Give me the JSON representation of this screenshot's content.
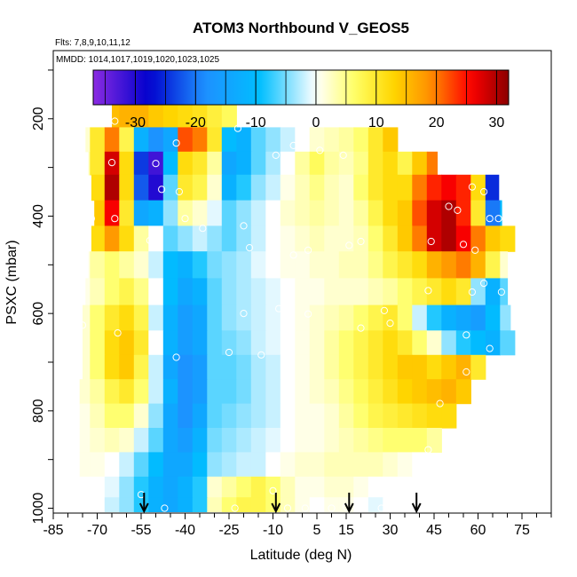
{
  "chart_data": {
    "type": "heatmap",
    "title": "ATOM3 Northbound V_GEOS5",
    "flights_label": "Flts: 7,8,9,10,11,12",
    "dates_label": "MMDD: 1014,1017,1019,1020,1023,1025",
    "xlabel": "Latitude (deg N)",
    "ylabel": "PSXC (mbar)",
    "xlim": [
      -85,
      85
    ],
    "ylim": [
      1010,
      60
    ],
    "x_ticks": [
      -85,
      -70,
      -55,
      -40,
      -25,
      -10,
      5,
      15,
      30,
      45,
      60,
      75
    ],
    "y_ticks": [
      200,
      400,
      600,
      800,
      1000
    ],
    "colorbar": {
      "ticks": [
        -30,
        -20,
        -10,
        0,
        10,
        20,
        30
      ],
      "range": [
        -37,
        32
      ],
      "colors": [
        "#8b2be2",
        "#0000cd",
        "#1e90ff",
        "#00bfff",
        "#ffffff",
        "#ffff66",
        "#ffd700",
        "#ff8c00",
        "#ff0000",
        "#8b0000"
      ]
    },
    "arrows_lat": [
      -54,
      -9,
      16,
      39
    ],
    "lat_grid": [
      -75,
      -70,
      -65,
      -60,
      -55,
      -50,
      -45,
      -40,
      -35,
      -30,
      -25,
      -20,
      -15,
      -10,
      -5,
      0,
      5,
      10,
      15,
      20,
      25,
      30,
      35,
      40,
      45,
      50,
      55,
      60,
      65,
      70
    ],
    "levels": [
      {
        "p": 190,
        "lat_min": -65,
        "lat_max": -15,
        "values": [
          null,
          null,
          15,
          16,
          16,
          14,
          13,
          12,
          11,
          9,
          7,
          null,
          null,
          null,
          null,
          null,
          null,
          null,
          null,
          null,
          null,
          null,
          null,
          null,
          null,
          null,
          null,
          null,
          null,
          null
        ]
      },
      {
        "p": 245,
        "lat_min": -74,
        "lat_max": 33,
        "values": [
          2,
          10,
          20,
          8,
          -12,
          -18,
          -14,
          22,
          20,
          10,
          -10,
          -12,
          -6,
          -4,
          -2,
          0,
          2,
          3,
          4,
          6,
          10,
          14,
          null,
          null,
          null,
          null,
          null,
          null,
          null,
          null
        ]
      },
      {
        "p": 290,
        "lat_min": -73,
        "lat_max": 46,
        "values": [
          3,
          10,
          28,
          12,
          -24,
          -32,
          -10,
          12,
          10,
          4,
          -14,
          -12,
          -6,
          -3,
          0,
          4,
          7,
          4,
          3,
          5,
          10,
          12,
          8,
          14,
          20,
          null,
          null,
          null,
          null,
          null
        ]
      },
      {
        "p": 340,
        "lat_min": -72,
        "lat_max": 67,
        "values": [
          2,
          12,
          30,
          12,
          -22,
          -30,
          -6,
          10,
          8,
          2,
          -12,
          -8,
          -4,
          -2,
          1,
          3,
          5,
          3,
          2,
          6,
          10,
          12,
          12,
          20,
          24,
          26,
          24,
          12,
          -25,
          -20
        ]
      },
      {
        "p": 395,
        "lat_min": -71,
        "lat_max": 68,
        "values": [
          3,
          14,
          26,
          10,
          -14,
          -12,
          -4,
          4,
          2,
          -1,
          -6,
          -4,
          -2,
          0,
          2,
          3,
          4,
          3,
          2,
          4,
          8,
          12,
          14,
          22,
          28,
          30,
          24,
          10,
          -20,
          -10
        ]
      },
      {
        "p": 445,
        "lat_min": -72,
        "lat_max": 73,
        "values": [
          4,
          12,
          18,
          12,
          4,
          0,
          -6,
          -4,
          -2,
          -4,
          -6,
          -4,
          -2,
          0,
          1,
          2,
          3,
          2,
          2,
          3,
          6,
          10,
          14,
          20,
          28,
          30,
          26,
          20,
          14,
          12
        ]
      },
      {
        "p": 500,
        "lat_min": -73,
        "lat_max": 70,
        "values": [
          1,
          4,
          6,
          4,
          2,
          -2,
          -10,
          -12,
          -8,
          -5,
          -4,
          -3,
          -1,
          0,
          1,
          1,
          2,
          2,
          3,
          3,
          5,
          8,
          10,
          12,
          16,
          18,
          20,
          16,
          8,
          2
        ]
      },
      {
        "p": 555,
        "lat_min": -74,
        "lat_max": 70,
        "values": [
          1,
          3,
          6,
          8,
          5,
          0,
          -10,
          -14,
          -12,
          -6,
          -4,
          -3,
          -2,
          -1,
          0,
          1,
          1,
          2,
          2,
          2,
          3,
          4,
          6,
          8,
          10,
          12,
          10,
          -4,
          -12,
          -6
        ]
      },
      {
        "p": 610,
        "lat_min": -75,
        "lat_max": 71,
        "values": [
          2,
          6,
          10,
          12,
          8,
          -2,
          -12,
          -16,
          -14,
          -6,
          -4,
          -3,
          -2,
          -1,
          0,
          1,
          2,
          3,
          4,
          6,
          8,
          10,
          6,
          -2,
          -8,
          -12,
          -14,
          -16,
          -10,
          -4
        ]
      },
      {
        "p": 660,
        "lat_min": -75,
        "lat_max": 73,
        "values": [
          2,
          6,
          12,
          14,
          10,
          0,
          -12,
          -16,
          -14,
          -6,
          -5,
          -4,
          -2,
          -1,
          0,
          1,
          2,
          4,
          6,
          8,
          10,
          12,
          10,
          6,
          2,
          -4,
          -8,
          -10,
          -12,
          -6
        ]
      },
      {
        "p": 710,
        "lat_min": -75,
        "lat_max": 65,
        "values": [
          2,
          6,
          12,
          14,
          8,
          -2,
          -14,
          -18,
          -16,
          -6,
          -6,
          -5,
          -3,
          -2,
          0,
          1,
          2,
          4,
          6,
          8,
          10,
          12,
          14,
          14,
          12,
          14,
          16,
          10,
          null,
          null
        ]
      },
      {
        "p": 760,
        "lat_min": -76,
        "lat_max": 60,
        "values": [
          2,
          4,
          8,
          10,
          6,
          -2,
          -12,
          -18,
          -16,
          -6,
          -6,
          -5,
          -3,
          -2,
          0,
          1,
          2,
          3,
          5,
          7,
          9,
          11,
          13,
          14,
          15,
          16,
          14,
          null,
          null,
          null
        ]
      },
      {
        "p": 810,
        "lat_min": -76,
        "lat_max": 55,
        "values": [
          1,
          3,
          6,
          6,
          2,
          -4,
          -14,
          -18,
          -14,
          -6,
          -5,
          -4,
          -3,
          -2,
          0,
          1,
          1,
          2,
          4,
          6,
          8,
          9,
          10,
          11,
          12,
          12,
          null,
          null,
          null,
          null
        ]
      },
      {
        "p": 860,
        "lat_min": -76,
        "lat_max": 50,
        "values": [
          1,
          2,
          3,
          2,
          -2,
          -6,
          -14,
          -16,
          -12,
          -5,
          -4,
          -3,
          -2,
          -1,
          0,
          1,
          1,
          2,
          3,
          4,
          5,
          6,
          6,
          6,
          4,
          null,
          null,
          null,
          null,
          null
        ]
      },
      {
        "p": 910,
        "lat_min": -76,
        "lat_max": 42,
        "values": [
          1,
          1,
          0,
          -2,
          -6,
          -10,
          -14,
          -14,
          -10,
          -4,
          -3,
          -2,
          -2,
          0,
          1,
          2,
          2,
          3,
          3,
          3,
          3,
          2,
          1,
          0,
          null,
          null,
          null,
          null,
          null,
          null
        ]
      },
      {
        "p": 960,
        "lat_min": -76,
        "lat_max": 37,
        "values": [
          0,
          0,
          -1,
          -4,
          -8,
          -12,
          -14,
          -12,
          -8,
          2,
          4,
          6,
          8,
          6,
          3,
          1,
          1,
          2,
          2,
          1,
          0,
          0,
          0,
          null,
          null,
          null,
          null,
          null,
          null,
          null
        ]
      },
      {
        "p": 995,
        "lat_min": -76,
        "lat_max": 38,
        "values": [
          0,
          0,
          -2,
          -4,
          -8,
          -12,
          -14,
          -12,
          -8,
          3,
          6,
          8,
          8,
          6,
          3,
          1,
          0,
          1,
          1,
          0,
          -1,
          0,
          0,
          null,
          null,
          null,
          null,
          null,
          null,
          null
        ]
      }
    ],
    "obs_points": [
      [
        -64,
        205
      ],
      [
        -43,
        250
      ],
      [
        -22,
        220
      ],
      [
        -17,
        200
      ],
      [
        -50,
        292
      ],
      [
        -65,
        290
      ],
      [
        -9,
        275
      ],
      [
        -3,
        255
      ],
      [
        6,
        265
      ],
      [
        14,
        275
      ],
      [
        -72,
        405
      ],
      [
        -64,
        405
      ],
      [
        -48,
        345
      ],
      [
        -42,
        350
      ],
      [
        -34,
        425
      ],
      [
        -40,
        405
      ],
      [
        -52,
        450
      ],
      [
        -20,
        420
      ],
      [
        -18,
        465
      ],
      [
        -10,
        470
      ],
      [
        -9,
        488
      ],
      [
        -3,
        480
      ],
      [
        2,
        470
      ],
      [
        16,
        460
      ],
      [
        20,
        452
      ],
      [
        44,
        452
      ],
      [
        50,
        380
      ],
      [
        53,
        388
      ],
      [
        58,
        340
      ],
      [
        62,
        350
      ],
      [
        64,
        405
      ],
      [
        67,
        405
      ],
      [
        55,
        458
      ],
      [
        59,
        470
      ],
      [
        62,
        538
      ],
      [
        58,
        556
      ],
      [
        68,
        556
      ],
      [
        -75,
        624
      ],
      [
        -63,
        640
      ],
      [
        -43,
        690
      ],
      [
        -25,
        680
      ],
      [
        -14,
        685
      ],
      [
        -20,
        600
      ],
      [
        -8,
        590
      ],
      [
        2,
        601
      ],
      [
        20,
        630
      ],
      [
        30,
        620
      ],
      [
        28,
        594
      ],
      [
        43,
        553
      ],
      [
        56,
        644
      ],
      [
        64,
        672
      ],
      [
        56,
        720
      ],
      [
        47,
        785
      ],
      [
        43,
        880
      ],
      [
        -47,
        1000
      ],
      [
        -23,
        1000
      ],
      [
        -5,
        1000
      ],
      [
        1,
        1000
      ],
      [
        10,
        1000
      ],
      [
        15,
        998
      ],
      [
        27,
        1000
      ],
      [
        36,
        998
      ],
      [
        -55,
        972
      ],
      [
        -10,
        964
      ],
      [
        40,
        998
      ]
    ]
  }
}
